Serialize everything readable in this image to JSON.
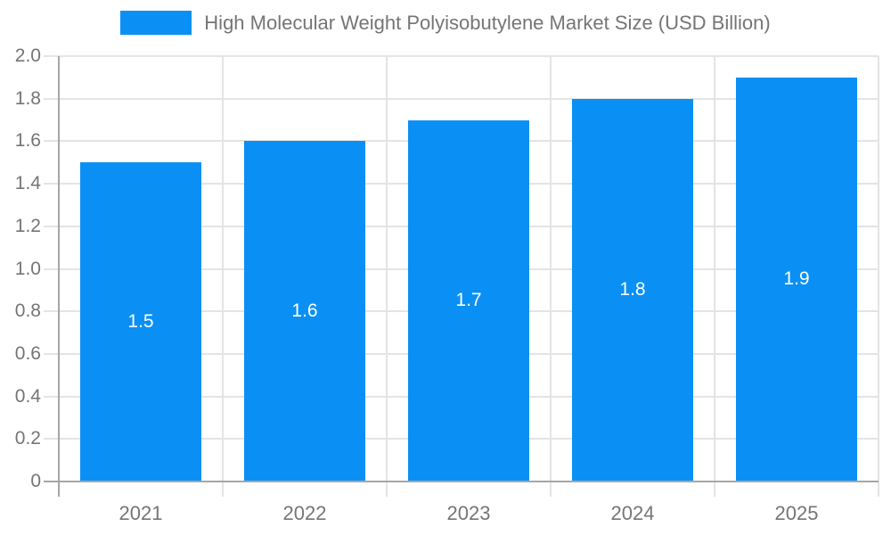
{
  "chart_data": {
    "type": "bar",
    "title": "High Molecular Weight Polyisobutylene Market Size (USD Billion)",
    "xlabel": "",
    "ylabel": "",
    "categories": [
      "2021",
      "2022",
      "2023",
      "2024",
      "2025"
    ],
    "series": [
      {
        "name": "High Molecular Weight Polyisobutylene Market Size (USD Billion)",
        "values": [
          1.5,
          1.6,
          1.7,
          1.8,
          1.9
        ]
      }
    ],
    "value_labels": [
      "1.5",
      "1.6",
      "1.7",
      "1.8",
      "1.9"
    ],
    "ylim": [
      0,
      2.0
    ],
    "ytick_labels": [
      "0",
      "0.2",
      "0.4",
      "0.6",
      "0.8",
      "1.0",
      "1.2",
      "1.4",
      "1.6",
      "1.8",
      "2.0"
    ],
    "grid": true,
    "legend_position": "top",
    "colors": {
      "bar": "#0a90f5",
      "text": "#757575",
      "value_text": "#ffffff",
      "gridline": "#e4e4e4",
      "axis": "#a6a6a6",
      "background": "#ffffff"
    }
  }
}
